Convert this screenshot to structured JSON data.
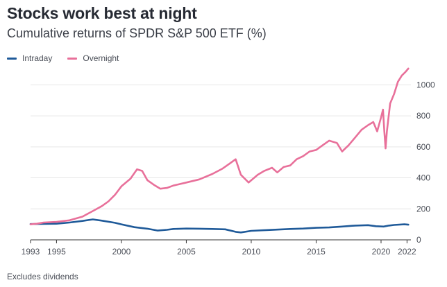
{
  "title": "Stocks work best at night",
  "subtitle": "Cumulative returns of SPDR S&P 500 ETF (%)",
  "footnote": "Excludes dividends",
  "colors": {
    "intraday": "#1f5a99",
    "overnight": "#e8709a",
    "grid": "#e6e6e6",
    "axis": "#333333",
    "tick_text": "#4a4e57"
  },
  "chart_data": {
    "type": "line",
    "title": "Stocks work best at night",
    "subtitle": "Cumulative returns of SPDR S&P 500 ETF (%)",
    "xlabel": "",
    "ylabel": "",
    "xlim": [
      1993,
      2022.3
    ],
    "ylim": [
      0,
      1100
    ],
    "y_axis_side": "right",
    "grid": "horizontal",
    "legend_position": "top-left",
    "x_ticks": [
      1993,
      1995,
      2000,
      2005,
      2010,
      2015,
      2020,
      2022
    ],
    "y_ticks": [
      0,
      200,
      400,
      600,
      800,
      1000
    ],
    "series": [
      {
        "name": "Intraday",
        "x": [
          1993,
          1994,
          1995,
          1996,
          1997,
          1997.8,
          1998.5,
          1999.5,
          2000,
          2001,
          2002,
          2002.8,
          2003.5,
          2004,
          2005,
          2006,
          2007,
          2008,
          2008.8,
          2009.2,
          2010,
          2011,
          2012,
          2013,
          2014,
          2015,
          2016,
          2017,
          2018,
          2019,
          2019.6,
          2020.2,
          2020.6,
          2021,
          2021.8,
          2022.1
        ],
        "values": [
          102,
          103,
          104,
          112,
          122,
          132,
          124,
          110,
          100,
          82,
          72,
          60,
          65,
          70,
          73,
          72,
          70,
          68,
          52,
          48,
          58,
          62,
          66,
          70,
          73,
          78,
          80,
          86,
          92,
          95,
          88,
          86,
          92,
          96,
          100,
          98
        ]
      },
      {
        "name": "Overnight",
        "x": [
          1993,
          1993.5,
          1994,
          1995,
          1996,
          1997,
          1998,
          1998.5,
          1999,
          1999.5,
          2000,
          2000.7,
          2001.2,
          2001.6,
          2002,
          2002.5,
          2003,
          2003.5,
          2004,
          2005,
          2006,
          2007,
          2007.8,
          2008.3,
          2008.8,
          2009.2,
          2009.8,
          2010.5,
          2011,
          2011.6,
          2012,
          2012.5,
          2013,
          2013.5,
          2014,
          2014.5,
          2015,
          2015.5,
          2016,
          2016.6,
          2017,
          2017.5,
          2018,
          2018.5,
          2019,
          2019.4,
          2019.7,
          2020,
          2020.15,
          2020.25,
          2020.35,
          2020.45,
          2020.7,
          2021,
          2021.3,
          2021.6,
          2021.9,
          2022.1
        ],
        "values": [
          100,
          104,
          112,
          116,
          126,
          150,
          195,
          218,
          248,
          290,
          345,
          395,
          455,
          445,
          385,
          355,
          330,
          335,
          350,
          370,
          390,
          425,
          460,
          490,
          520,
          420,
          370,
          420,
          445,
          465,
          435,
          470,
          480,
          520,
          540,
          570,
          580,
          610,
          640,
          625,
          570,
          610,
          660,
          710,
          740,
          760,
          700,
          790,
          840,
          700,
          590,
          700,
          880,
          940,
          1020,
          1060,
          1085,
          1105
        ]
      }
    ]
  },
  "legend": {
    "items": [
      {
        "label": "Intraday"
      },
      {
        "label": "Overnight"
      }
    ]
  }
}
